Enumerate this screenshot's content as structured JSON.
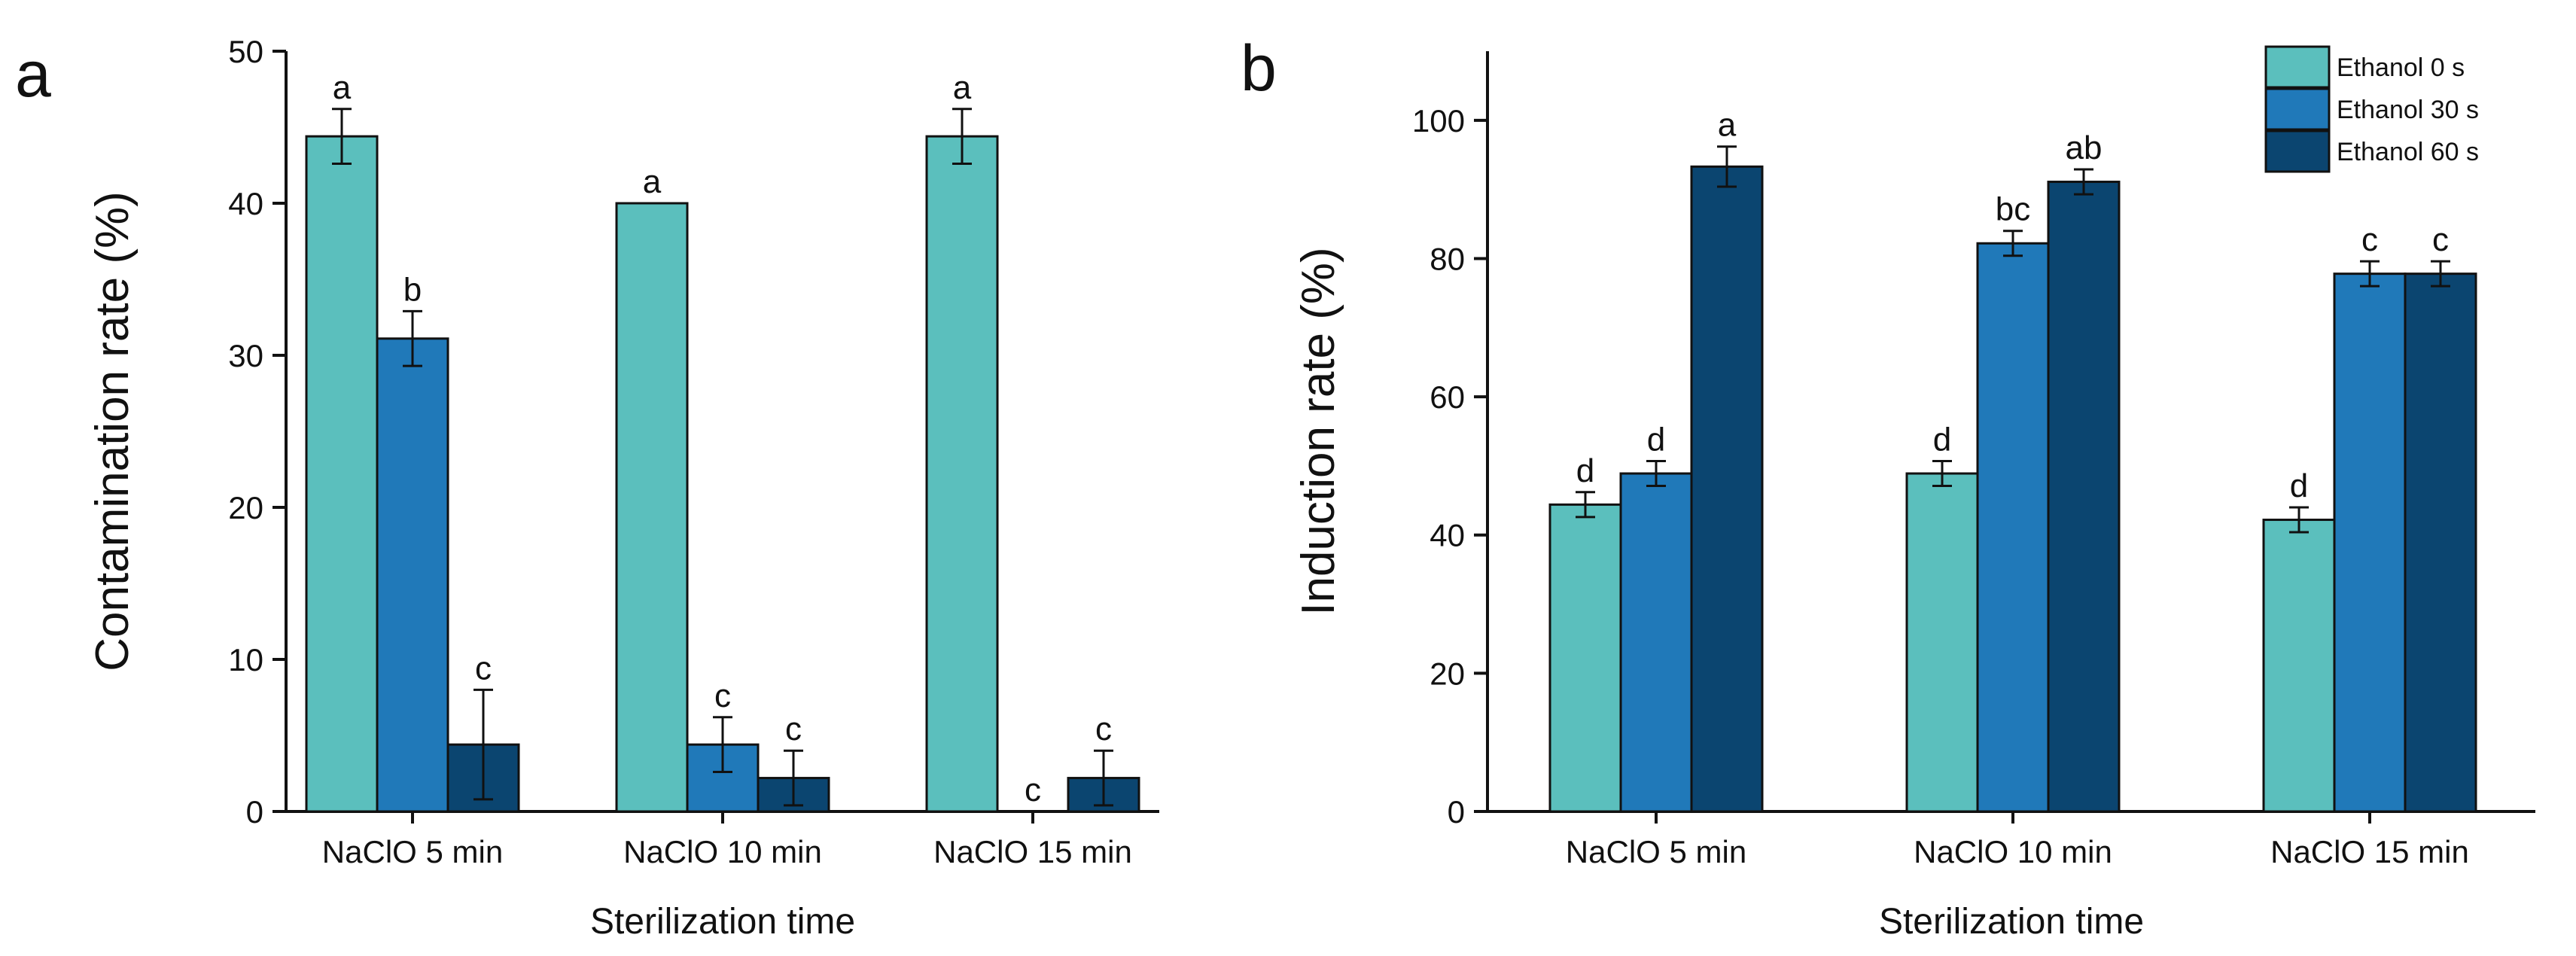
{
  "chart_data": [
    {
      "type": "bar",
      "panel": "a",
      "title": "",
      "xlabel": "Sterilization time",
      "ylabel": "Contamination rate (%)",
      "ylim": [
        0,
        50
      ],
      "yticks": [
        0,
        10,
        20,
        30,
        40,
        50
      ],
      "categories": [
        "NaClO 5 min",
        "NaClO 10 min",
        "NaClO 15 min"
      ],
      "series": [
        {
          "name": "Ethanol 0 s",
          "values": [
            44.4,
            40.0,
            44.4
          ],
          "errors": [
            1.8,
            0,
            1.8
          ],
          "labels": [
            "a",
            "a",
            "a"
          ]
        },
        {
          "name": "Ethanol 30 s",
          "values": [
            31.1,
            4.4,
            0.0
          ],
          "errors": [
            1.8,
            1.8,
            0
          ],
          "labels": [
            "b",
            "c",
            "c"
          ]
        },
        {
          "name": "Ethanol 60 s",
          "values": [
            4.4,
            2.2,
            2.2
          ],
          "errors": [
            3.6,
            1.8,
            1.8
          ],
          "labels": [
            "c",
            "c",
            "c"
          ]
        }
      ],
      "legend": "none"
    },
    {
      "type": "bar",
      "panel": "b",
      "title": "",
      "xlabel": "Sterilization time",
      "ylabel": "Induction rate (%)",
      "ylim": [
        0,
        110
      ],
      "yticks": [
        0,
        20,
        40,
        60,
        80,
        100
      ],
      "categories": [
        "NaClO 5 min",
        "NaClO 10 min",
        "NaClO 15 min"
      ],
      "series": [
        {
          "name": "Ethanol 0 s",
          "values": [
            44.4,
            48.9,
            42.2
          ],
          "errors": [
            1.8,
            1.8,
            1.8
          ],
          "labels": [
            "d",
            "d",
            "d"
          ]
        },
        {
          "name": "Ethanol 30 s",
          "values": [
            48.9,
            82.2,
            77.8
          ],
          "errors": [
            1.8,
            1.8,
            1.8
          ],
          "labels": [
            "d",
            "bc",
            "c"
          ]
        },
        {
          "name": "Ethanol 60 s",
          "values": [
            93.3,
            91.1,
            77.8
          ],
          "errors": [
            2.9,
            1.8,
            1.8
          ],
          "labels": [
            "a",
            "ab",
            "c"
          ]
        }
      ],
      "legend": "top-right"
    }
  ],
  "colors": [
    "#5bbfbd",
    "#2079b9",
    "#0b4570"
  ],
  "icons": {
    "legend_swatch": "legend-swatch-icon"
  }
}
